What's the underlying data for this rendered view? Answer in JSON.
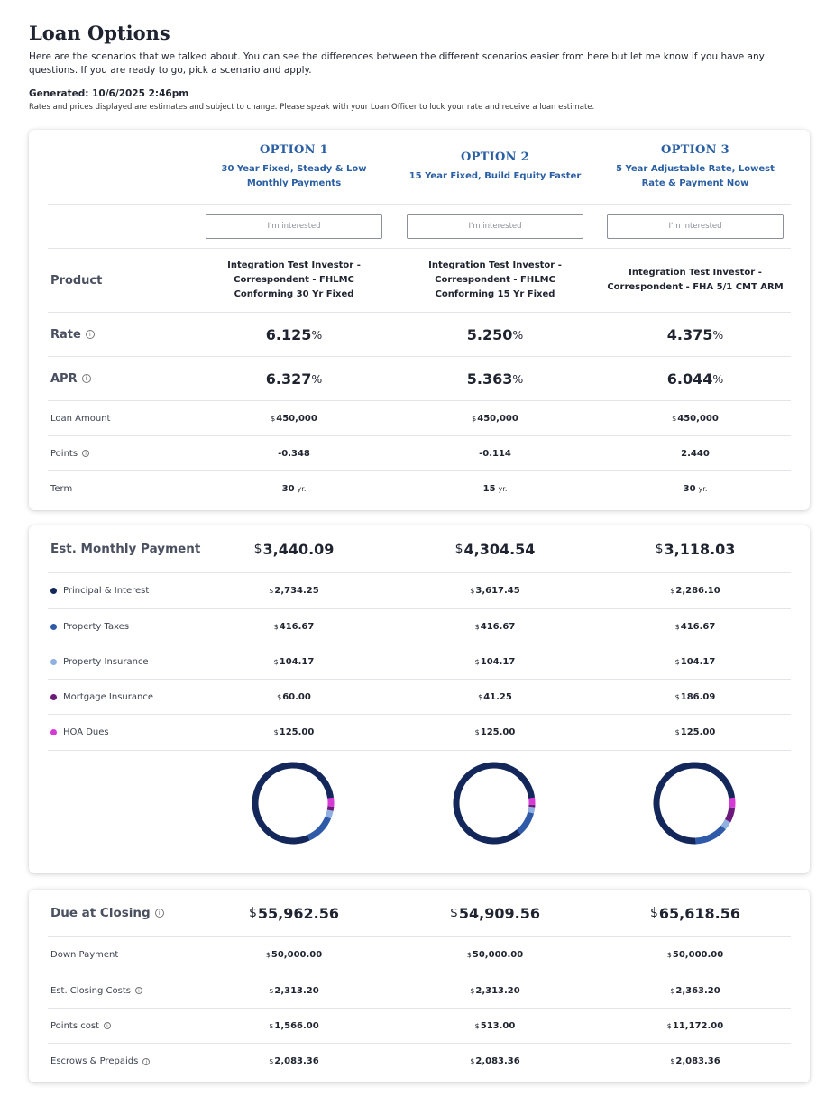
{
  "page": {
    "title": "Loan Options",
    "intro": "Here are the scenarios that we talked about. You can see the differences between the different scenarios easier from here but let me know if you have any questions. If you are ready to go, pick a scenario and apply.",
    "generated": "Generated: 10/6/2025 2:46pm",
    "disclaimer": "Rates and prices displayed are estimates and subject to change. Please speak with your Loan Officer to lock your rate and receive a loan estimate."
  },
  "currency_symbol": "$",
  "percent_symbol": "%",
  "term_unit": "yr.",
  "info_glyph": "i",
  "labels": {
    "product": "Product",
    "rate": "Rate",
    "apr": "APR",
    "loan_amount": "Loan Amount",
    "points": "Points",
    "term": "Term",
    "monthly_payment": "Est. Monthly Payment",
    "principal_interest": "Principal & Interest",
    "property_taxes": "Property Taxes",
    "property_insurance": "Property Insurance",
    "mortgage_insurance": "Mortgage Insurance",
    "hoa_dues": "HOA Dues",
    "due_at_closing": "Due at Closing",
    "down_payment": "Down Payment",
    "closing_costs": "Est. Closing Costs",
    "points_cost": "Points cost",
    "escrows_prepaids": "Escrows & Prepaids"
  },
  "breakdown_colors": {
    "principal_interest": "#13275a",
    "property_taxes": "#2f5aa8",
    "property_insurance": "#8fb0e0",
    "mortgage_insurance": "#6b1a7a",
    "hoa_dues": "#d43ad4"
  },
  "options": [
    {
      "title": "OPTION 1",
      "subtitle": "30 Year Fixed, Steady & Low Monthly Payments",
      "button": "I'm interested",
      "product": "Integration Test Investor - Correspondent - FHLMC Conforming 30 Yr Fixed",
      "rate": "6.125",
      "apr": "6.327",
      "loan_amount": "450,000",
      "points": "-0.348",
      "term": "30",
      "monthly_payment": "3,440.09",
      "principal_interest": "2,734.25",
      "property_taxes": "416.67",
      "property_insurance": "104.17",
      "mortgage_insurance": "60.00",
      "hoa_dues": "125.00",
      "due_at_closing": "55,962.56",
      "down_payment": "50,000.00",
      "closing_costs": "2,313.20",
      "points_cost": "1,566.00",
      "escrows_prepaids": "2,083.36"
    },
    {
      "title": "OPTION 2",
      "subtitle": "15 Year Fixed, Build Equity Faster",
      "button": "I'm interested",
      "product": "Integration Test Investor - Correspondent - FHLMC Conforming 15 Yr Fixed",
      "rate": "5.250",
      "apr": "5.363",
      "loan_amount": "450,000",
      "points": "-0.114",
      "term": "15",
      "monthly_payment": "4,304.54",
      "principal_interest": "3,617.45",
      "property_taxes": "416.67",
      "property_insurance": "104.17",
      "mortgage_insurance": "41.25",
      "hoa_dues": "125.00",
      "due_at_closing": "54,909.56",
      "down_payment": "50,000.00",
      "closing_costs": "2,313.20",
      "points_cost": "513.00",
      "escrows_prepaids": "2,083.36"
    },
    {
      "title": "OPTION 3",
      "subtitle": "5 Year Adjustable Rate, Lowest Rate & Payment Now",
      "button": "I'm interested",
      "product": "Integration Test Investor - Correspondent - FHA 5/1 CMT ARM",
      "rate": "4.375",
      "apr": "6.044",
      "loan_amount": "450,000",
      "points": "2.440",
      "term": "30",
      "monthly_payment": "3,118.03",
      "principal_interest": "2,286.10",
      "property_taxes": "416.67",
      "property_insurance": "104.17",
      "mortgage_insurance": "186.09",
      "hoa_dues": "125.00",
      "due_at_closing": "65,618.56",
      "down_payment": "50,000.00",
      "closing_costs": "2,363.20",
      "points_cost": "11,172.00",
      "escrows_prepaids": "2,083.36"
    }
  ]
}
